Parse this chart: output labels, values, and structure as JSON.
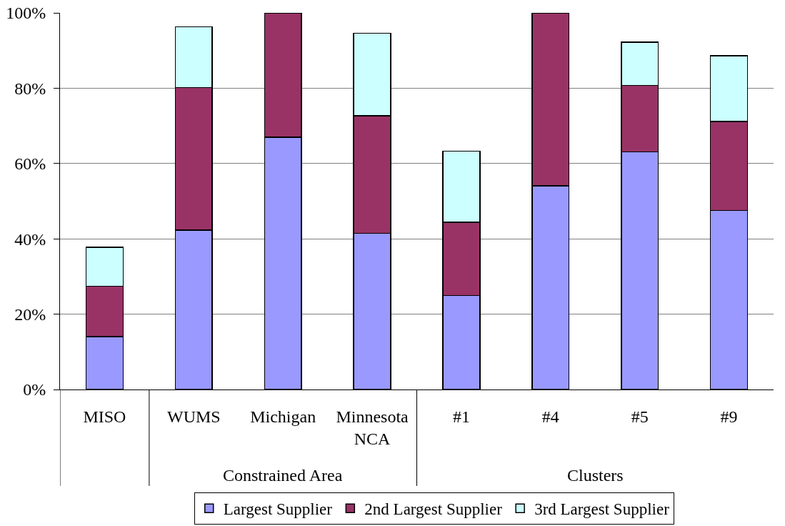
{
  "chart_data": {
    "type": "bar",
    "stacked": true,
    "categories": [
      "MISO",
      "WUMS",
      "Michigan",
      "Minnesota NCA",
      "#1",
      "#4",
      "#5",
      "#9"
    ],
    "series": [
      {
        "name": "Largest Supplier",
        "color": "#9999ff",
        "values": [
          14.0,
          42.3,
          67.0,
          41.5,
          25.0,
          54.1,
          63.1,
          47.5
        ]
      },
      {
        "name": "2nd Largest Supplier",
        "color": "#993366",
        "values": [
          13.4,
          37.9,
          33.0,
          31.2,
          19.4,
          45.9,
          17.6,
          23.7
        ]
      },
      {
        "name": "3rd Largest Supplier",
        "color": "#ccffff",
        "values": [
          10.4,
          16.1,
          null,
          21.9,
          18.9,
          null,
          11.5,
          17.4
        ]
      }
    ],
    "ylim": [
      0,
      100
    ],
    "yticks": [
      {
        "value": 0,
        "label": "0%"
      },
      {
        "value": 20,
        "label": "20%"
      },
      {
        "value": 40,
        "label": "40%"
      },
      {
        "value": 60,
        "label": "60%"
      },
      {
        "value": 80,
        "label": "80%"
      },
      {
        "value": 100,
        "label": "100%"
      }
    ],
    "grid": "y",
    "legend": "bottom",
    "annotations": [
      "Constrained Area",
      "Clusters"
    ]
  }
}
